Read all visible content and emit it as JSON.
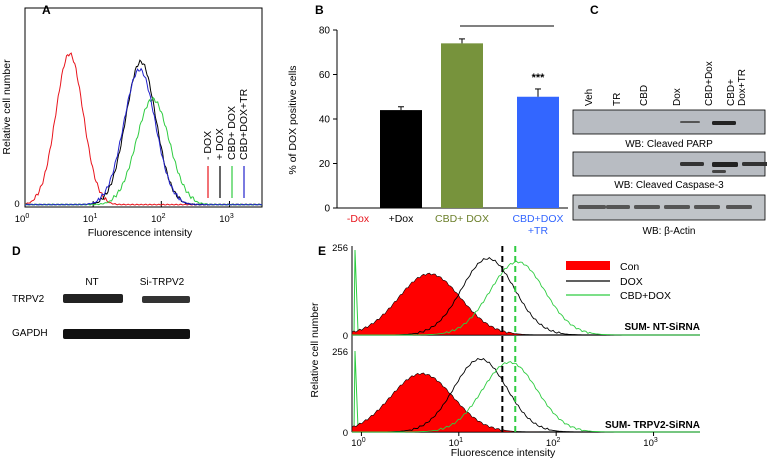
{
  "chart_data": [
    {
      "panel": "A",
      "type": "line",
      "title": "",
      "xlabel": "Fluorescence intensity",
      "ylabel": "Relative cell number",
      "x_scale": "log",
      "xlim": [
        1,
        3000
      ],
      "ylim": [
        0,
        100
      ],
      "x_ticks": [
        {
          "v": 1,
          "label": "10",
          "exp": "0"
        },
        {
          "v": 10,
          "label": "10",
          "exp": "1"
        },
        {
          "v": 100,
          "label": "10",
          "exp": "2"
        },
        {
          "v": 1000,
          "label": "10",
          "exp": "3"
        }
      ],
      "y_ticks": [
        {
          "v": 0,
          "label": "0"
        }
      ],
      "series": [
        {
          "name": "- DOX",
          "color": "#e8141c",
          "peak": 4.5,
          "height": 76,
          "width": 0.2
        },
        {
          "name": "+ DOX",
          "color": "#000000",
          "peak": 50,
          "height": 72,
          "width": 0.22
        },
        {
          "name": "CBD+ DOX",
          "color": "#2ecc40",
          "peak": 75,
          "height": 53,
          "width": 0.24
        },
        {
          "name": "CBD+DOX+TR",
          "color": "#2222cc",
          "peak": 48,
          "height": 68,
          "width": 0.23
        }
      ]
    },
    {
      "panel": "B",
      "type": "bar",
      "title": "",
      "xlabel": "",
      "ylabel": "% of DOX positive cells",
      "ylim": [
        0,
        80
      ],
      "y_ticks": [
        0,
        20,
        40,
        60,
        80
      ],
      "categories": [
        "-Dox",
        "+Dox",
        "CBD+ DOX",
        "CBD+DOX+TR"
      ],
      "category_colors": [
        "#e8141c",
        "#000000",
        "#6b7f2a",
        "#3366ff"
      ],
      "values": [
        0,
        44,
        74,
        50
      ],
      "errors": [
        0,
        1.5,
        2,
        3.5
      ],
      "bar_colors": [
        "#e8141c",
        "#000000",
        "#77933c",
        "#3366ff"
      ],
      "significance": "***"
    },
    {
      "panel": "E",
      "type": "line",
      "title": "",
      "xlabel": "Fluorescence intensity",
      "ylabel": "Relative cell number",
      "x_scale": "log",
      "xlim": [
        0.8,
        3000
      ],
      "ylim": [
        0,
        256
      ],
      "x_ticks": [
        {
          "v": 1,
          "label": "10",
          "exp": "0"
        },
        {
          "v": 10,
          "label": "10",
          "exp": "1"
        },
        {
          "v": 100,
          "label": "10",
          "exp": "2"
        },
        {
          "v": 1000,
          "label": "10",
          "exp": "3"
        }
      ],
      "y_ticks": [
        {
          "v": 0,
          "label": "0"
        },
        {
          "v": 256,
          "label": "256"
        }
      ],
      "series": [
        {
          "name": "Con",
          "color": "#e8141c",
          "peak": 5,
          "height": 180,
          "width": 0.32
        },
        {
          "name": "DOX",
          "color": "#000000",
          "peak": 20,
          "height": 225,
          "width": 0.27
        },
        {
          "name": "CBD+DOX",
          "color": "#2ecc40",
          "peak": 40,
          "height": 215,
          "width": 0.28
        }
      ],
      "subpanels": [
        "SUM- NT-SiRNA",
        "SUM- TRPV2-SiRNA"
      ],
      "dashed_lines": [
        {
          "x": 28,
          "color": "#000000"
        },
        {
          "x": 38,
          "color": "#2ecc40"
        }
      ]
    }
  ],
  "panels": {
    "A": "A",
    "B": "B",
    "C": "C",
    "D": "D",
    "E": "E"
  },
  "western_c": {
    "lanes": [
      "Veh",
      "TR",
      "CBD",
      "Dox",
      "CBD+Dox",
      "CBD+ Dox+TR"
    ],
    "blots": [
      "WB: Cleaved PARP",
      "WB: Cleaved Caspase-3",
      "WB: β-Actin"
    ]
  },
  "western_d": {
    "lanes": [
      "NT",
      "Si-TRPV2"
    ],
    "rows": [
      "TRPV2",
      "GAPDH"
    ]
  }
}
